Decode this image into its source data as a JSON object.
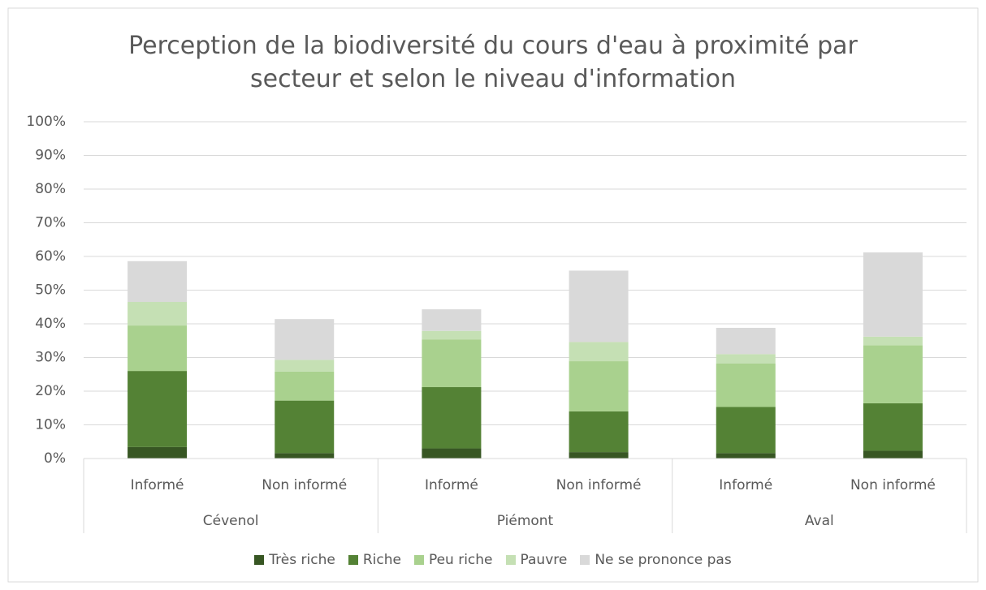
{
  "chart_data": {
    "type": "stacked_bar",
    "title": "Perception de la biodiversité du cours d'eau à proximité par secteur et selon le niveau d'information",
    "categories": [
      "Informé",
      "Non informé",
      "Informé",
      "Non informé",
      "Informé",
      "Non informé"
    ],
    "groups": [
      "Cévenol",
      "Piémont",
      "Aval"
    ],
    "series": [
      {
        "name": "Très riche",
        "color": "#375623",
        "values": [
          3.4,
          1.6,
          3.0,
          1.9,
          1.6,
          2.3
        ]
      },
      {
        "name": "Riche",
        "color": "#548235",
        "values": [
          22.6,
          15.6,
          18.2,
          12.1,
          13.7,
          14.1
        ]
      },
      {
        "name": "Peu riche",
        "color": "#a9d18e",
        "values": [
          13.5,
          8.6,
          14.1,
          14.9,
          12.9,
          17.2
        ]
      },
      {
        "name": "Pauvre",
        "color": "#c5e0b4",
        "values": [
          7.0,
          3.5,
          2.6,
          5.7,
          2.8,
          2.6
        ]
      },
      {
        "name": "Ne se prononce pas",
        "color": "#d9d9d9",
        "values": [
          12.1,
          12.1,
          6.4,
          21.2,
          7.8,
          25.0
        ]
      }
    ],
    "ylim": [
      0,
      100
    ],
    "yticks": [
      {
        "value": 0,
        "label": "0%"
      },
      {
        "value": 10,
        "label": "10%"
      },
      {
        "value": 20,
        "label": "20%"
      },
      {
        "value": 30,
        "label": "30%"
      },
      {
        "value": 40,
        "label": "40%"
      },
      {
        "value": 50,
        "label": "50%"
      },
      {
        "value": 60,
        "label": "60%"
      },
      {
        "value": 70,
        "label": "70%"
      },
      {
        "value": 80,
        "label": "80%"
      },
      {
        "value": 90,
        "label": "90%"
      },
      {
        "value": 100,
        "label": "100%"
      }
    ],
    "grid": true,
    "legend": "bottom"
  }
}
